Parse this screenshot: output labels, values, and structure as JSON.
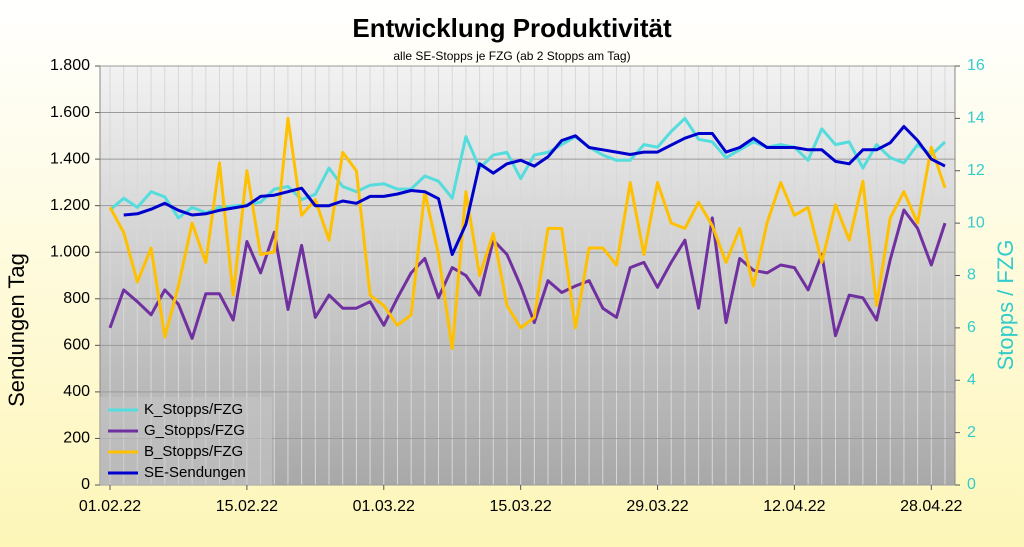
{
  "chart_data": {
    "type": "line",
    "title": "Entwicklung Produktivität",
    "subtitle": "alle SE-Stopps je FZG (ab 2 Stopps am Tag)",
    "y_label": "Sendungen Tag",
    "y2_label": "Stopps / FZG",
    "categories": [
      "01.02.22",
      null,
      null,
      null,
      null,
      null,
      null,
      null,
      null,
      null,
      "15.02.22",
      null,
      null,
      null,
      null,
      null,
      null,
      null,
      null,
      null,
      "01.03.22",
      null,
      null,
      null,
      null,
      null,
      null,
      null,
      null,
      null,
      "15.03.22",
      null,
      null,
      null,
      null,
      null,
      null,
      null,
      null,
      null,
      "29.03.22",
      null,
      null,
      null,
      null,
      null,
      null,
      null,
      null,
      null,
      "12.04.22",
      null,
      null,
      null,
      null,
      null,
      null,
      null,
      null,
      null,
      "28.04.22",
      null
    ],
    "ylim": [
      0,
      1800
    ],
    "yticks": [
      0,
      200,
      400,
      600,
      800,
      {
        "value": 1000,
        "label": "1.000"
      },
      {
        "value": 1200,
        "label": "1.200"
      },
      {
        "value": 1400,
        "label": "1.400"
      },
      {
        "value": 1600,
        "label": "1.600"
      },
      {
        "value": 1800,
        "label": "1.800"
      }
    ],
    "y2lim": [
      0,
      16
    ],
    "y2ticks": [
      0,
      2,
      4,
      6,
      8,
      10,
      12,
      14,
      16
    ],
    "grid": true,
    "legend": "lower left",
    "series": [
      {
        "name": "K_Stopps/FZG",
        "color": "#55dcdc",
        "axis": "y2",
        "values": [
          10.5,
          10.95,
          10.6,
          11.2,
          11.0,
          10.2,
          10.6,
          10.4,
          10.6,
          10.65,
          10.7,
          10.8,
          11.3,
          11.4,
          10.9,
          11.1,
          12.1,
          11.4,
          11.2,
          11.45,
          11.5,
          11.3,
          11.3,
          11.8,
          11.6,
          10.95,
          13.3,
          12.1,
          12.6,
          12.7,
          11.7,
          12.6,
          12.7,
          13.0,
          13.3,
          12.9,
          12.6,
          12.4,
          12.4,
          13.0,
          12.9,
          13.5,
          14.0,
          13.2,
          13.1,
          12.5,
          12.8,
          13.1,
          12.9,
          13.0,
          12.9,
          12.4,
          13.6,
          13.0,
          13.1,
          12.1,
          13.0,
          12.5,
          12.3,
          13.0,
          12.6,
          13.1
        ]
      },
      {
        "name": "G_Stopps/FZG",
        "color": "#7030a0",
        "axis": "y2",
        "values": [
          6.0,
          7.45,
          7.0,
          6.5,
          7.45,
          6.9,
          5.6,
          7.3,
          7.3,
          6.3,
          9.3,
          8.1,
          9.65,
          6.7,
          9.15,
          6.4,
          7.25,
          6.75,
          6.75,
          7.0,
          6.1,
          7.15,
          8.1,
          8.65,
          7.15,
          8.3,
          8.0,
          7.25,
          9.35,
          8.8,
          7.6,
          6.2,
          7.8,
          7.35,
          7.6,
          7.8,
          6.75,
          6.4,
          8.3,
          8.5,
          7.55,
          8.5,
          9.35,
          6.75,
          10.2,
          6.2,
          8.65,
          8.2,
          8.1,
          8.4,
          8.3,
          7.45,
          8.8,
          5.7,
          7.25,
          7.15,
          6.3,
          8.6,
          10.5,
          9.8,
          8.4,
          10.0
        ]
      },
      {
        "name": "B_Stopps/FZG",
        "color": "#ffc000",
        "axis": "y2",
        "values": [
          10.6,
          9.65,
          7.75,
          9.05,
          5.65,
          7.6,
          10.0,
          8.5,
          12.3,
          7.25,
          12.0,
          8.8,
          8.9,
          14.0,
          10.3,
          10.9,
          9.35,
          12.7,
          12.0,
          7.25,
          6.85,
          6.1,
          6.5,
          11.2,
          8.8,
          5.2,
          11.2,
          8.0,
          9.6,
          6.85,
          6.0,
          6.4,
          9.8,
          9.8,
          6.0,
          9.05,
          9.05,
          8.4,
          11.55,
          8.8,
          11.55,
          10.0,
          9.8,
          10.8,
          9.9,
          8.5,
          9.8,
          7.6,
          10.0,
          11.55,
          10.3,
          10.6,
          8.5,
          10.7,
          9.35,
          11.6,
          6.85,
          10.2,
          11.2,
          10.0,
          12.9,
          11.35
        ]
      },
      {
        "name": "SE-Sendungen",
        "color": "#0000cc",
        "values": [
          null,
          1160,
          1165,
          1185,
          1210,
          1180,
          1160,
          1165,
          1180,
          1190,
          1200,
          1240,
          1245,
          1260,
          1275,
          1200,
          1200,
          1220,
          1210,
          1240,
          1240,
          1250,
          1265,
          1260,
          1230,
          990,
          1120,
          1380,
          1340,
          1380,
          1395,
          1370,
          1410,
          1480,
          1500,
          1450,
          1440,
          1430,
          1420,
          1430,
          1430,
          1460,
          1490,
          1510,
          1510,
          1430,
          1450,
          1490,
          1450,
          1450,
          1450,
          1440,
          1440,
          1390,
          1380,
          1440,
          1440,
          1470,
          1540,
          1480,
          1400,
          1370
        ]
      }
    ]
  }
}
